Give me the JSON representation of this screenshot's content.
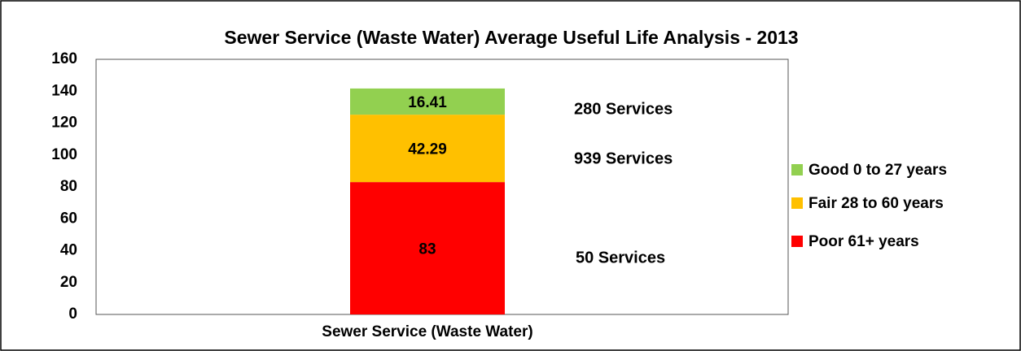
{
  "chart_data": {
    "type": "stacked_bar",
    "title": "Sewer Service (Waste Water) Average Useful Life Analysis - 2013",
    "categories": [
      "Sewer Service (Waste Water)"
    ],
    "series": [
      {
        "name": "Poor 61+ years",
        "color": "#ff0000",
        "values": [
          83
        ]
      },
      {
        "name": "Fair 28 to 60 years",
        "color": "#ffc000",
        "values": [
          42.29
        ]
      },
      {
        "name": "Good 0 to 27 years",
        "color": "#92d050",
        "values": [
          16.41
        ]
      }
    ],
    "annotations": [
      "280 Services",
      "939 Services",
      "50 Services"
    ],
    "ylim": [
      0,
      160
    ],
    "yticks": [
      0,
      20,
      40,
      60,
      80,
      100,
      120,
      140,
      160
    ],
    "grid": false,
    "legend": "right"
  }
}
